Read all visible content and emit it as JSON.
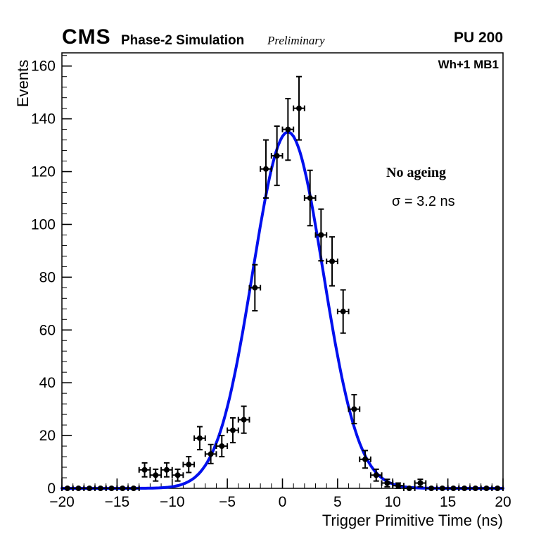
{
  "header": {
    "cms": "CMS",
    "subtitle": "Phase-2 Simulation",
    "preliminary": "Preliminary",
    "right_label": "PU 200"
  },
  "plot": {
    "corner_label": "Wh+1 MB1",
    "annotation_line1": "No ageing",
    "annotation_line2": "σ = 3.2 ns"
  },
  "chart_data": {
    "type": "scatter",
    "title": "",
    "xlabel": "Trigger Primitive Time (ns)",
    "ylabel": "Events",
    "xlim": [
      -20,
      20
    ],
    "ylim": [
      0,
      165
    ],
    "x_ticks": [
      -20,
      -15,
      -10,
      -5,
      0,
      5,
      10,
      15,
      20
    ],
    "y_ticks": [
      0,
      20,
      40,
      60,
      80,
      100,
      120,
      140,
      160
    ],
    "x_minor_step": 1,
    "y_minor_step": 4,
    "grid": false,
    "legend": "none",
    "marker_color": "#000000",
    "marker_style": "filled-circle",
    "x_error_half_width": 0.5,
    "error_mode": "sqrt(N)",
    "points": [
      [
        -19.5,
        0
      ],
      [
        -18.5,
        0
      ],
      [
        -17.5,
        0
      ],
      [
        -16.5,
        0
      ],
      [
        -15.5,
        0
      ],
      [
        -14.5,
        0
      ],
      [
        -13.5,
        0
      ],
      [
        -12.5,
        7
      ],
      [
        -11.5,
        5
      ],
      [
        -10.5,
        7
      ],
      [
        -9.5,
        5
      ],
      [
        -8.5,
        9
      ],
      [
        -7.5,
        19
      ],
      [
        -6.5,
        13
      ],
      [
        -5.5,
        16
      ],
      [
        -4.5,
        22
      ],
      [
        -3.5,
        26
      ],
      [
        -2.5,
        76
      ],
      [
        -1.5,
        121
      ],
      [
        -0.5,
        126
      ],
      [
        0.5,
        136
      ],
      [
        1.5,
        144
      ],
      [
        2.5,
        110
      ],
      [
        3.5,
        96
      ],
      [
        4.5,
        86
      ],
      [
        5.5,
        67
      ],
      [
        6.5,
        30
      ],
      [
        7.5,
        11
      ],
      [
        8.5,
        5
      ],
      [
        9.5,
        2
      ],
      [
        10.5,
        1
      ],
      [
        11.5,
        0
      ],
      [
        12.5,
        2
      ],
      [
        13.5,
        0
      ],
      [
        14.5,
        0
      ],
      [
        15.5,
        0
      ],
      [
        16.5,
        0
      ],
      [
        17.5,
        0
      ],
      [
        18.5,
        0
      ],
      [
        19.5,
        0
      ]
    ],
    "fit": {
      "type": "gaussian",
      "amplitude": 135,
      "mean": 0.5,
      "sigma": 3.2,
      "color": "#0010ee",
      "linewidth": 4
    }
  }
}
